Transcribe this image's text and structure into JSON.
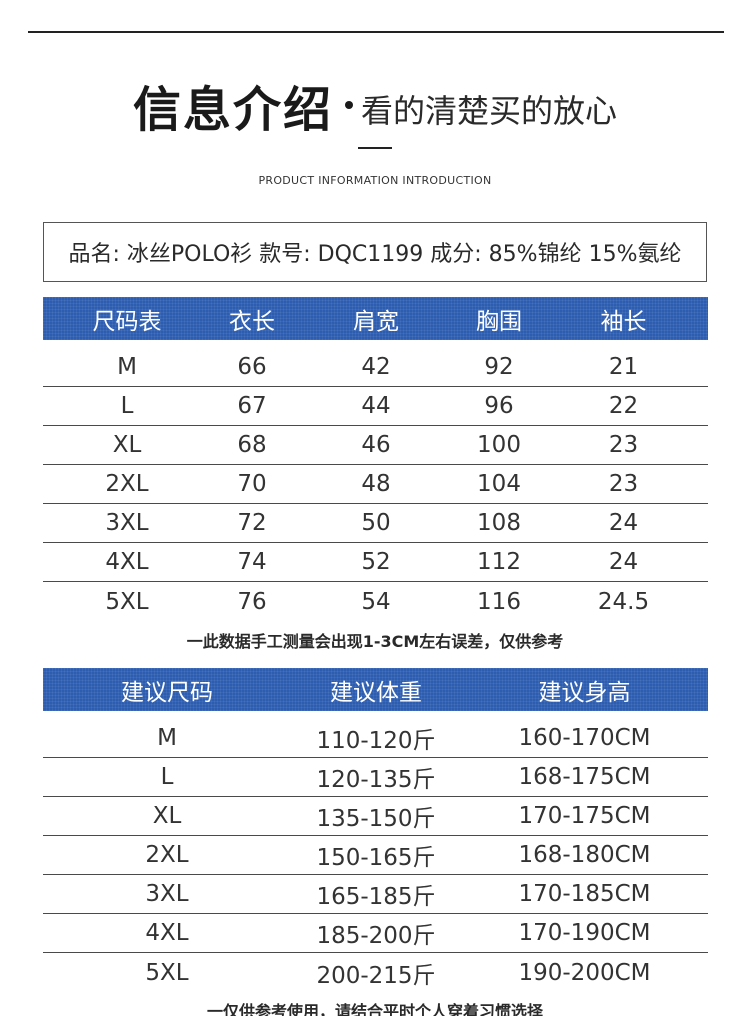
{
  "header": {
    "title_main": "信息介绍",
    "title_sub": "看的清楚买的放心",
    "title_en": "PRODUCT INFORMATION INTRODUCTION"
  },
  "product_info": "品名: 冰丝POLO衫  款号: DQC1199  成分: 85%锦纶 15%氨纶",
  "size_table": {
    "headers": [
      "尺码表",
      "衣长",
      "肩宽",
      "胸围",
      "袖长"
    ],
    "rows": [
      [
        "M",
        "66",
        "42",
        "92",
        "21"
      ],
      [
        "L",
        "67",
        "44",
        "96",
        "22"
      ],
      [
        "XL",
        "68",
        "46",
        "100",
        "23"
      ],
      [
        "2XL",
        "70",
        "48",
        "104",
        "23"
      ],
      [
        "3XL",
        "72",
        "50",
        "108",
        "24"
      ],
      [
        "4XL",
        "74",
        "52",
        "112",
        "24"
      ],
      [
        "5XL",
        "76",
        "54",
        "116",
        "24.5"
      ]
    ],
    "note": "一此数据手工测量会出现1-3CM左右误差，仅供参考"
  },
  "recommend_table": {
    "headers": [
      "建议尺码",
      "建议体重",
      "建议身高"
    ],
    "rows": [
      [
        "M",
        "110-120斤",
        "160-170CM"
      ],
      [
        "L",
        "120-135斤",
        "168-175CM"
      ],
      [
        "XL",
        "135-150斤",
        "170-175CM"
      ],
      [
        "2XL",
        "150-165斤",
        "168-180CM"
      ],
      [
        "3XL",
        "165-185斤",
        "170-185CM"
      ],
      [
        "4XL",
        "185-200斤",
        "170-190CM"
      ],
      [
        "5XL",
        "200-215斤",
        "190-200CM"
      ]
    ],
    "note": "一仅供参考使用，请结合平时个人穿着习惯选择"
  },
  "colors": {
    "header_band": "#2c5db0",
    "header_text": "#ffffff",
    "body_text": "#333333",
    "rule": "#4a4a4a"
  }
}
